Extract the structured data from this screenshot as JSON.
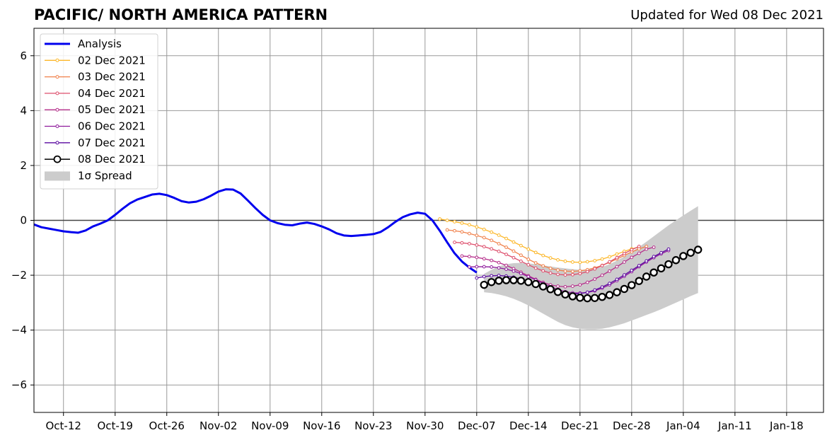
{
  "title_left": "PACIFIC/ NORTH AMERICA PATTERN",
  "title_right": "Updated for Wed 08 Dec 2021",
  "chart_data": {
    "type": "line",
    "x_start": "2021-10-08",
    "x_end": "2022-01-23",
    "xlim_days": [
      0,
      107
    ],
    "ylim": [
      -7,
      7
    ],
    "grid": true,
    "legend_position": "upper-left",
    "x_ticks": [
      "Oct-12",
      "Oct-19",
      "Oct-26",
      "Nov-02",
      "Nov-09",
      "Nov-16",
      "Nov-23",
      "Nov-30",
      "Dec-07",
      "Dec-14",
      "Dec-21",
      "Dec-28",
      "Jan-04",
      "Jan-11",
      "Jan-18"
    ],
    "x_tick_days": [
      4,
      11,
      18,
      25,
      32,
      39,
      46,
      53,
      60,
      67,
      74,
      81,
      88,
      95,
      102
    ],
    "y_ticks": [
      -6,
      -4,
      -2,
      0,
      2,
      4,
      6
    ],
    "y_tick_labels": [
      "−6",
      "−4",
      "−2",
      "0",
      "2",
      "4",
      "6"
    ],
    "analysis": {
      "name": "Analysis",
      "color": "#0000ee",
      "values": [
        -0.15,
        -0.25,
        -0.3,
        -0.35,
        -0.4,
        -0.43,
        -0.45,
        -0.37,
        -0.22,
        -0.12,
        0.0,
        0.2,
        0.42,
        0.62,
        0.76,
        0.85,
        0.94,
        0.97,
        0.92,
        0.82,
        0.7,
        0.65,
        0.68,
        0.77,
        0.9,
        1.05,
        1.13,
        1.12,
        0.98,
        0.72,
        0.45,
        0.2,
        0.0,
        -0.1,
        -0.16,
        -0.18,
        -0.12,
        -0.08,
        -0.13,
        -0.22,
        -0.33,
        -0.47,
        -0.55,
        -0.57,
        -0.55,
        -0.53,
        -0.5,
        -0.42,
        -0.25,
        -0.05,
        0.12,
        0.22,
        0.28,
        0.24,
        0.0,
        -0.38,
        -0.8,
        -1.2,
        -1.5,
        -1.72,
        -1.9
      ]
    },
    "forecasts": [
      {
        "name": "02 Dec 2021",
        "color": "#fcb728",
        "start_day": 55,
        "values": [
          0.05,
          0.0,
          -0.05,
          -0.1,
          -0.16,
          -0.24,
          -0.33,
          -0.43,
          -0.54,
          -0.66,
          -0.79,
          -0.92,
          -1.05,
          -1.17,
          -1.28,
          -1.37,
          -1.44,
          -1.49,
          -1.52,
          -1.53,
          -1.51,
          -1.47,
          -1.41,
          -1.33,
          -1.23,
          -1.13,
          -1.04,
          -0.97
        ]
      },
      {
        "name": "03 Dec 2021",
        "color": "#f0804a",
        "start_day": 56,
        "values": [
          -0.35,
          -0.38,
          -0.42,
          -0.48,
          -0.55,
          -0.63,
          -0.73,
          -0.85,
          -0.98,
          -1.12,
          -1.27,
          -1.42,
          -1.55,
          -1.66,
          -1.75,
          -1.81,
          -1.85,
          -1.86,
          -1.84,
          -1.8,
          -1.73,
          -1.64,
          -1.53,
          -1.41,
          -1.28,
          -1.15,
          -1.04,
          -0.95
        ]
      },
      {
        "name": "04 Dec 2021",
        "color": "#dd4d6b",
        "start_day": 57,
        "values": [
          -0.8,
          -0.82,
          -0.85,
          -0.9,
          -0.96,
          -1.04,
          -1.13,
          -1.24,
          -1.36,
          -1.49,
          -1.62,
          -1.74,
          -1.84,
          -1.92,
          -1.97,
          -1.99,
          -1.98,
          -1.94,
          -1.87,
          -1.77,
          -1.65,
          -1.51,
          -1.36,
          -1.21,
          -1.07,
          -0.95
        ]
      },
      {
        "name": "05 Dec 2021",
        "color": "#b52d8a",
        "start_day": 58,
        "values": [
          -1.3,
          -1.32,
          -1.35,
          -1.4,
          -1.46,
          -1.54,
          -1.64,
          -1.76,
          -1.89,
          -2.02,
          -2.15,
          -2.26,
          -2.35,
          -2.4,
          -2.42,
          -2.4,
          -2.35,
          -2.26,
          -2.14,
          -2.0,
          -1.85,
          -1.69,
          -1.52,
          -1.35,
          -1.2,
          -1.05,
          -0.98
        ]
      },
      {
        "name": "06 Dec 2021",
        "color": "#8e1a9c",
        "start_day": 59,
        "values": [
          -1.7,
          -1.69,
          -1.69,
          -1.7,
          -1.73,
          -1.78,
          -1.85,
          -1.94,
          -2.05,
          -2.17,
          -2.3,
          -2.42,
          -2.52,
          -2.6,
          -2.64,
          -2.65,
          -2.63,
          -2.57,
          -2.47,
          -2.35,
          -2.2,
          -2.04,
          -1.87,
          -1.69,
          -1.52,
          -1.36,
          -1.22,
          -1.1
        ]
      },
      {
        "name": "07 Dec 2021",
        "color": "#5a0aa0",
        "start_day": 60,
        "values": [
          -2.1,
          -2.05,
          -2.02,
          -2.01,
          -2.03,
          -2.07,
          -2.14,
          -2.23,
          -2.33,
          -2.43,
          -2.53,
          -2.61,
          -2.66,
          -2.68,
          -2.67,
          -2.62,
          -2.54,
          -2.43,
          -2.3,
          -2.15,
          -1.99,
          -1.82,
          -1.65,
          -1.48,
          -1.32,
          -1.18,
          -1.05
        ]
      },
      {
        "name": "08 Dec 2021",
        "color": "#000000",
        "start_day": 61,
        "values": [
          -2.35,
          -2.25,
          -2.2,
          -2.18,
          -2.18,
          -2.2,
          -2.25,
          -2.32,
          -2.41,
          -2.51,
          -2.61,
          -2.7,
          -2.77,
          -2.82,
          -2.84,
          -2.83,
          -2.79,
          -2.72,
          -2.62,
          -2.5,
          -2.36,
          -2.21,
          -2.05,
          -1.9,
          -1.75,
          -1.6,
          -1.45,
          -1.3,
          -1.18,
          -1.07
        ]
      }
    ],
    "spread": {
      "name": "1σ Spread",
      "color": "#cccccc",
      "start_day": 61,
      "upper": [
        -1.95,
        -1.8,
        -1.68,
        -1.6,
        -1.56,
        -1.55,
        -1.57,
        -1.6,
        -1.64,
        -1.68,
        -1.72,
        -1.75,
        -1.78,
        -1.8,
        -1.8,
        -1.77,
        -1.7,
        -1.6,
        -1.47,
        -1.32,
        -1.15,
        -0.97,
        -0.78,
        -0.58,
        -0.38,
        -0.18,
        0.0,
        0.18,
        0.35,
        0.52
      ],
      "lower": [
        -2.62,
        -2.65,
        -2.7,
        -2.77,
        -2.86,
        -2.97,
        -3.1,
        -3.25,
        -3.4,
        -3.55,
        -3.7,
        -3.82,
        -3.9,
        -3.95,
        -3.97,
        -3.97,
        -3.95,
        -3.9,
        -3.83,
        -3.75,
        -3.65,
        -3.55,
        -3.45,
        -3.35,
        -3.24,
        -3.12,
        -3.0,
        -2.88,
        -2.76,
        -2.65
      ]
    }
  }
}
